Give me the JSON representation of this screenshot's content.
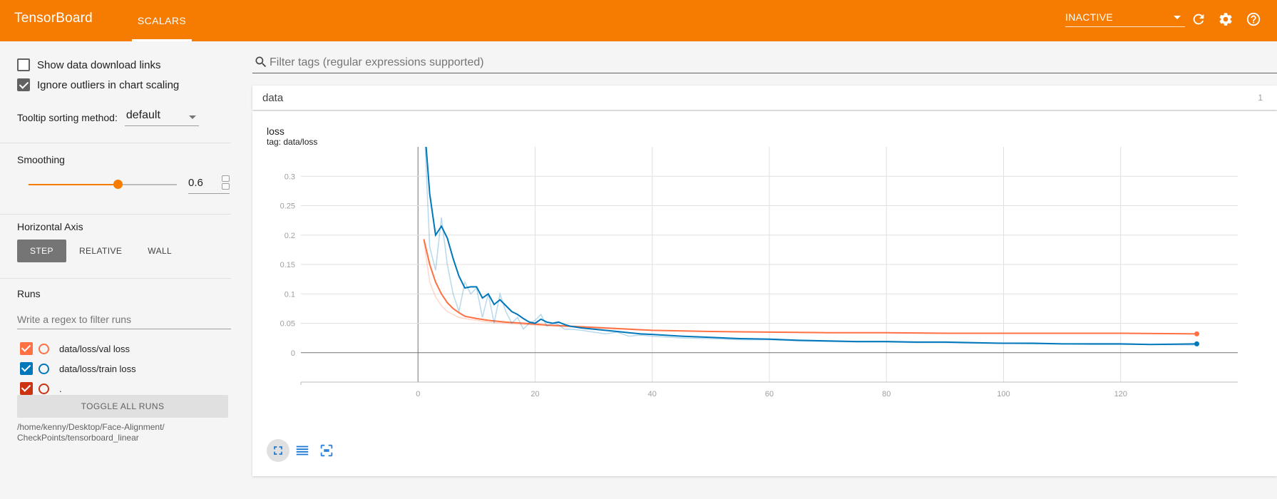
{
  "header": {
    "brand": "TensorBoard",
    "tabs": [
      {
        "label": "SCALARS",
        "active": true
      }
    ],
    "run_status": "INACTIVE",
    "accent_color": "#f57c00",
    "icons": [
      "refresh-icon",
      "settings-icon",
      "help-icon"
    ]
  },
  "sidebar": {
    "show_download_links": {
      "label": "Show data download links",
      "checked": false
    },
    "ignore_outliers": {
      "label": "Ignore outliers in chart scaling",
      "checked": true
    },
    "tooltip_sorting": {
      "label": "Tooltip sorting method:",
      "value": "default"
    },
    "smoothing": {
      "title": "Smoothing",
      "value": "0.6",
      "fraction": 0.6
    },
    "horizontal_axis": {
      "title": "Horizontal Axis",
      "options": [
        "STEP",
        "RELATIVE",
        "WALL"
      ],
      "selected": "STEP"
    },
    "runs": {
      "title": "Runs",
      "filter_placeholder": "Write a regex to filter runs",
      "items": [
        {
          "label": "data/loss/val loss",
          "color": "#ff7043",
          "checked": true
        },
        {
          "label": "data/loss/train loss",
          "color": "#0077bb",
          "checked": true
        },
        {
          "label": ".",
          "color": "#cc3311",
          "checked": true
        }
      ],
      "toggle_all_label": "TOGGLE ALL RUNS",
      "logdir_line1": "/home/kenny/Desktop/Face-Alignment/",
      "logdir_line2": "CheckPoints/tensorboard_linear"
    }
  },
  "main": {
    "filter_placeholder": "Filter tags (regular expressions supported)",
    "category": {
      "name": "data",
      "count": "1"
    },
    "card": {
      "title": "loss",
      "tag": "tag: data/loss"
    }
  },
  "chart_data": {
    "type": "line",
    "title": "loss",
    "subtitle": "tag: data/loss",
    "xlabel": "",
    "ylabel": "",
    "xlim": [
      -20,
      140
    ],
    "ylim": [
      -0.05,
      0.35
    ],
    "x_ticks": [
      "0",
      "20",
      "40",
      "60",
      "80",
      "100",
      "120"
    ],
    "y_ticks": [
      "0",
      "0.05",
      "0.1",
      "0.15",
      "0.2",
      "0.25",
      "0.3"
    ],
    "grid": true,
    "series": [
      {
        "color": "#ff7043",
        "x": [
          1,
          2,
          3,
          4,
          5,
          6,
          7,
          8,
          10,
          12,
          15,
          18,
          22,
          26,
          30,
          40,
          50,
          60,
          70,
          80,
          90,
          100,
          110,
          120,
          133
        ],
        "raw": [
          0.19,
          0.12,
          0.095,
          0.08,
          0.07,
          0.065,
          0.06,
          0.058,
          0.055,
          0.052,
          0.05,
          0.048,
          0.046,
          0.044,
          0.042,
          0.038,
          0.036,
          0.035,
          0.034,
          0.034,
          0.033,
          0.033,
          0.033,
          0.033,
          0.032
        ],
        "smoothed": [
          0.193,
          0.15,
          0.12,
          0.1,
          0.085,
          0.075,
          0.068,
          0.062,
          0.058,
          0.055,
          0.052,
          0.05,
          0.047,
          0.045,
          0.043,
          0.038,
          0.036,
          0.035,
          0.034,
          0.034,
          0.033,
          0.033,
          0.033,
          0.033,
          0.032
        ]
      },
      {
        "color": "#0077bb",
        "x": [
          1,
          2,
          3,
          4,
          5,
          6,
          7,
          8,
          9,
          10,
          11,
          12,
          13,
          14,
          15,
          16,
          17,
          18,
          19,
          20,
          21,
          22,
          23,
          24,
          25,
          26,
          28,
          30,
          32,
          34,
          36,
          38,
          40,
          45,
          50,
          55,
          60,
          65,
          70,
          75,
          80,
          85,
          90,
          95,
          100,
          105,
          110,
          115,
          120,
          125,
          133
        ],
        "raw": [
          0.4,
          0.18,
          0.14,
          0.23,
          0.15,
          0.1,
          0.07,
          0.12,
          0.1,
          0.11,
          0.06,
          0.1,
          0.05,
          0.1,
          0.07,
          0.05,
          0.06,
          0.04,
          0.05,
          0.055,
          0.065,
          0.045,
          0.05,
          0.048,
          0.04,
          0.04,
          0.038,
          0.035,
          0.032,
          0.035,
          0.028,
          0.03,
          0.028,
          0.025,
          0.024,
          0.022,
          0.022,
          0.02,
          0.019,
          0.018,
          0.018,
          0.017,
          0.017,
          0.016,
          0.016,
          0.015,
          0.015,
          0.014,
          0.014,
          0.014,
          0.013
        ],
        "smoothed": [
          0.4,
          0.27,
          0.2,
          0.215,
          0.195,
          0.16,
          0.13,
          0.11,
          0.112,
          0.112,
          0.093,
          0.1,
          0.082,
          0.09,
          0.08,
          0.07,
          0.065,
          0.058,
          0.052,
          0.05,
          0.057,
          0.052,
          0.05,
          0.052,
          0.048,
          0.045,
          0.042,
          0.04,
          0.038,
          0.036,
          0.034,
          0.032,
          0.031,
          0.028,
          0.026,
          0.024,
          0.023,
          0.021,
          0.02,
          0.019,
          0.019,
          0.018,
          0.018,
          0.017,
          0.016,
          0.016,
          0.015,
          0.015,
          0.015,
          0.014,
          0.015
        ]
      }
    ]
  }
}
